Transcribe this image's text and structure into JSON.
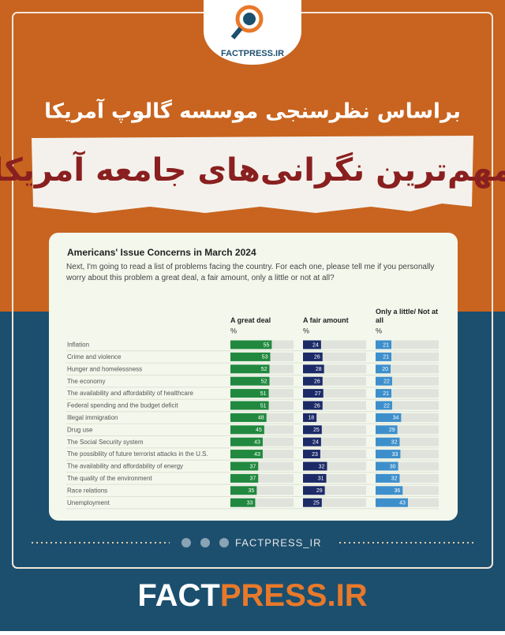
{
  "brand": "FACTPRESS.IR",
  "subtitle": "براساس نظرسنجی موسسه گالوپ آمریکا",
  "headline": "مهم‌ترین نگرانی‌های جامعه آمریکا",
  "chart_data": {
    "type": "bar",
    "title": "Americans' Issue Concerns in March 2024",
    "subtitle": "Next, I'm going to read a list of problems facing the country. For each one, please tell me if you personally worry about this problem a great deal, a fair amount, only a little or not at all?",
    "unit": "%",
    "xlim": [
      0,
      84
    ],
    "categories": [
      "Inflation",
      "Crime and violence",
      "Hunger and homelessness",
      "The economy",
      "The availability and affordability of healthcare",
      "Federal spending and the budget deficit",
      "Illegal immigration",
      "Drug use",
      "The Social Security system",
      "The possibility of future terrorist attacks in the U.S.",
      "The availability and affordability of energy",
      "The quality of the environment",
      "Race relations",
      "Unemployment"
    ],
    "series": [
      {
        "name": "A great deal",
        "color": "#21893f",
        "values": [
          55,
          53,
          52,
          52,
          51,
          51,
          48,
          45,
          43,
          43,
          37,
          37,
          35,
          33
        ]
      },
      {
        "name": "A fair amount",
        "color": "#1c2a68",
        "values": [
          24,
          26,
          28,
          26,
          27,
          26,
          18,
          25,
          24,
          23,
          32,
          31,
          29,
          25
        ]
      },
      {
        "name": "Only a little/ Not at all",
        "color": "#3d8fcc",
        "values": [
          21,
          21,
          20,
          22,
          21,
          22,
          34,
          29,
          32,
          33,
          30,
          32,
          36,
          43
        ]
      }
    ]
  },
  "social_handle": "FACTPRESS_IR",
  "footer_brand": [
    "FACT",
    "PRESS.IR"
  ]
}
